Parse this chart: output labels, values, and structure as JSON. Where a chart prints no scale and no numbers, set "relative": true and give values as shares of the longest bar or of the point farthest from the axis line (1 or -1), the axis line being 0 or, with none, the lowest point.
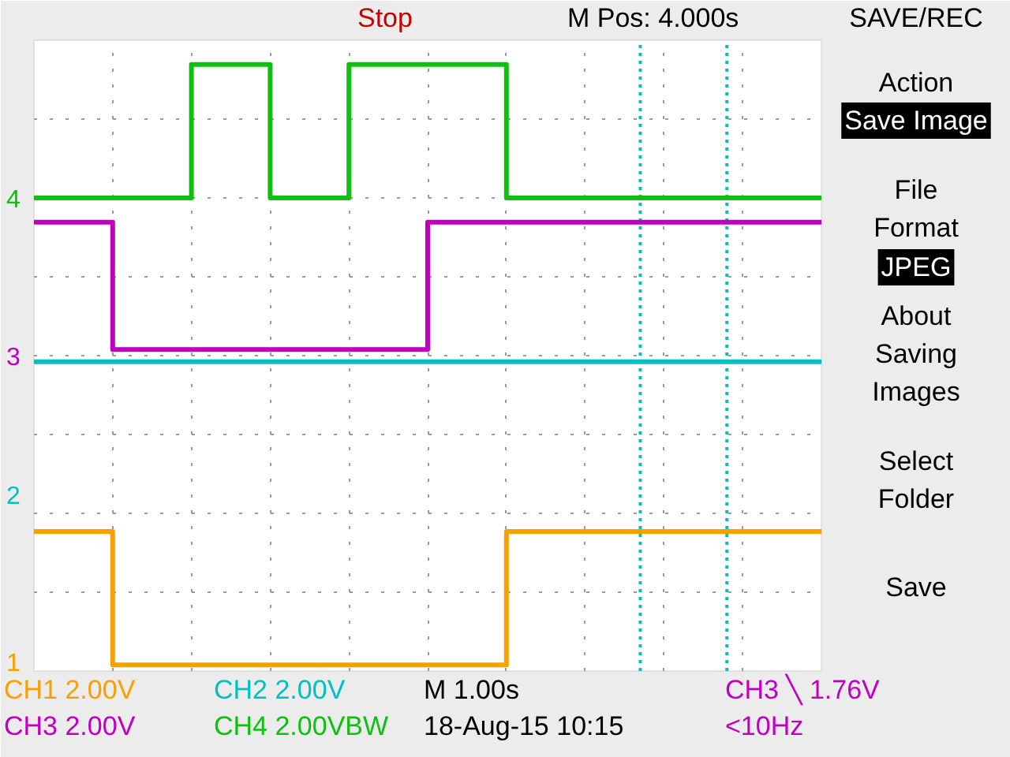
{
  "chart_data": {
    "type": "step",
    "relative": true,
    "categories": [
      null,
      null,
      null,
      null,
      null,
      null,
      null,
      null,
      null,
      null,
      null
    ],
    "series": [
      {
        "name": "CH1 2.00V",
        "color": "#f8a000",
        "values": [
          0.23,
          0.01,
          0.01,
          0.01,
          0.01,
          0.01,
          0.23,
          0.23,
          0.23,
          0.23,
          0.23
        ]
      },
      {
        "name": "CH2 2.00V",
        "color": "#00c0c0",
        "values": [
          0.51,
          0.51,
          0.51,
          0.51,
          0.51,
          0.51,
          0.51,
          0.51,
          0.51,
          0.51,
          0.51
        ]
      },
      {
        "name": "CH3 2.00V",
        "color": "#c000c0",
        "values": [
          0.74,
          0.53,
          0.53,
          0.53,
          0.53,
          0.74,
          0.74,
          0.74,
          0.74,
          0.74,
          0.74
        ]
      },
      {
        "name": "CH4 2.00VBW",
        "color": "#10c010",
        "values": [
          0.78,
          0.78,
          1,
          0.78,
          1,
          1,
          0.78,
          0.78,
          0.78,
          0.78,
          0.78
        ]
      }
    ],
    "grid": true,
    "annotations": [
      "1",
      "2",
      "3",
      "4",
      "Stop",
      "M Pos: 4.000s",
      "SAVE/REC",
      "Action",
      "Save Image",
      "File",
      "Format",
      "JPEG",
      "About",
      "Saving",
      "Images",
      "Select",
      "Folder",
      "Save",
      "M 1.00s",
      "18-Aug-15 10:15",
      "CH3 ╲ 1.76V",
      "<10Hz"
    ]
  }
}
